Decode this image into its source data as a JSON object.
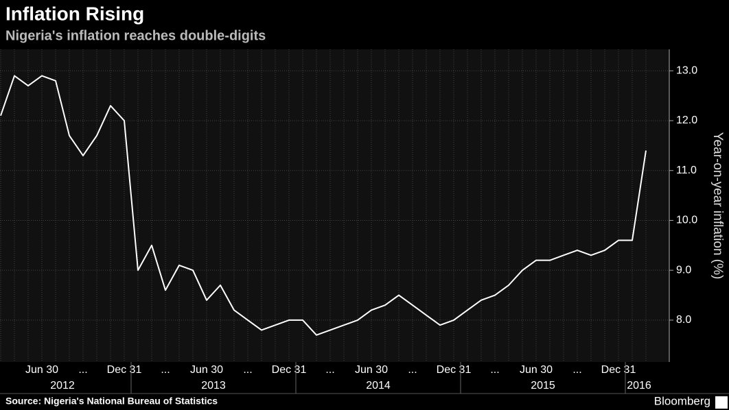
{
  "chart_data": {
    "type": "line",
    "title": "Inflation Rising",
    "subtitle": "Nigeria's inflation reaches double-digits",
    "y_axis_label": "Year-on-year inflation (%)",
    "source": "Source: Nigeria's National Bureau of Statistics",
    "brand": "Bloomberg",
    "categories": [
      null,
      null,
      null,
      "Jun 30",
      null,
      null,
      "...",
      null,
      null,
      "Dec 31",
      null,
      null,
      "...",
      null,
      null,
      "Jun 30",
      null,
      null,
      "...",
      null,
      null,
      "Dec 31",
      null,
      null,
      "...",
      null,
      null,
      "Jun 30",
      null,
      null,
      "...",
      null,
      null,
      "Dec 31",
      null,
      null,
      "...",
      null,
      null,
      "Jun 30",
      null,
      null,
      "...",
      null,
      null,
      "Dec 31",
      null,
      null
    ],
    "years": [
      "2012",
      "2013",
      "2014",
      "2015",
      "2016"
    ],
    "series": [
      {
        "name": "Inflation",
        "color": "#ffffff",
        "values": [
          12.1,
          12.9,
          12.7,
          12.9,
          12.8,
          11.7,
          11.3,
          11.7,
          12.3,
          12.0,
          9.0,
          9.5,
          8.6,
          9.1,
          9.0,
          8.4,
          8.7,
          8.2,
          8.0,
          7.8,
          7.9,
          8.0,
          8.0,
          7.7,
          7.8,
          7.9,
          8.0,
          8.2,
          8.3,
          8.5,
          8.3,
          8.1,
          7.9,
          8.0,
          8.2,
          8.4,
          8.5,
          8.7,
          9.0,
          9.2,
          9.2,
          9.3,
          9.4,
          9.3,
          9.4,
          9.6,
          9.6,
          11.4
        ]
      }
    ],
    "ylim": [
      7.16,
      13.43
    ],
    "yticks": [
      {
        "value": 8,
        "label": "8.0"
      },
      {
        "value": 9,
        "label": "9.0"
      },
      {
        "value": 10,
        "label": "10.0"
      },
      {
        "value": 11,
        "label": "11.0"
      },
      {
        "value": 12,
        "label": "12.0"
      },
      {
        "value": 13,
        "label": "13.0"
      }
    ],
    "grid": true
  }
}
